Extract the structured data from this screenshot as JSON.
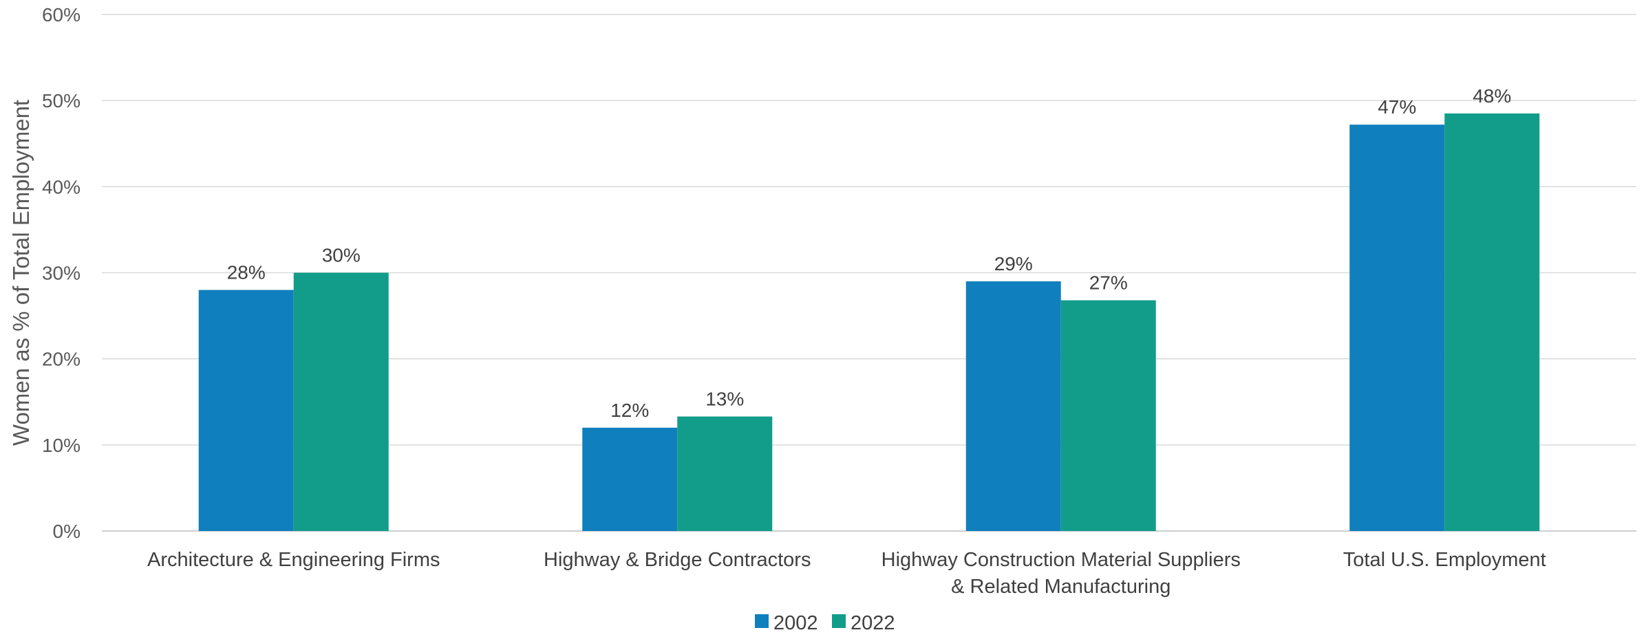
{
  "chart_data": {
    "type": "bar",
    "ylabel": "Women as % of Total Employment",
    "ylim": [
      0,
      60
    ],
    "yticks": [
      "0%",
      "10%",
      "20%",
      "30%",
      "40%",
      "50%",
      "60%"
    ],
    "grid": true,
    "legend_position": "bottom",
    "categories": [
      [
        "Architecture & Engineering Firms"
      ],
      [
        "Highway & Bridge Contractors"
      ],
      [
        "Highway Construction Material Suppliers",
        "& Related Manufacturing"
      ],
      [
        "Total U.S. Employment"
      ]
    ],
    "series": [
      {
        "name": "2002",
        "color": "#0f80bd",
        "values": [
          28,
          12,
          29,
          47.2
        ],
        "labels": [
          "28%",
          "12%",
          "29%",
          "47%"
        ]
      },
      {
        "name": "2022",
        "color": "#129d8a",
        "values": [
          30,
          13.3,
          26.8,
          48.5
        ],
        "labels": [
          "30%",
          "13%",
          "27%",
          "48%"
        ]
      }
    ]
  }
}
